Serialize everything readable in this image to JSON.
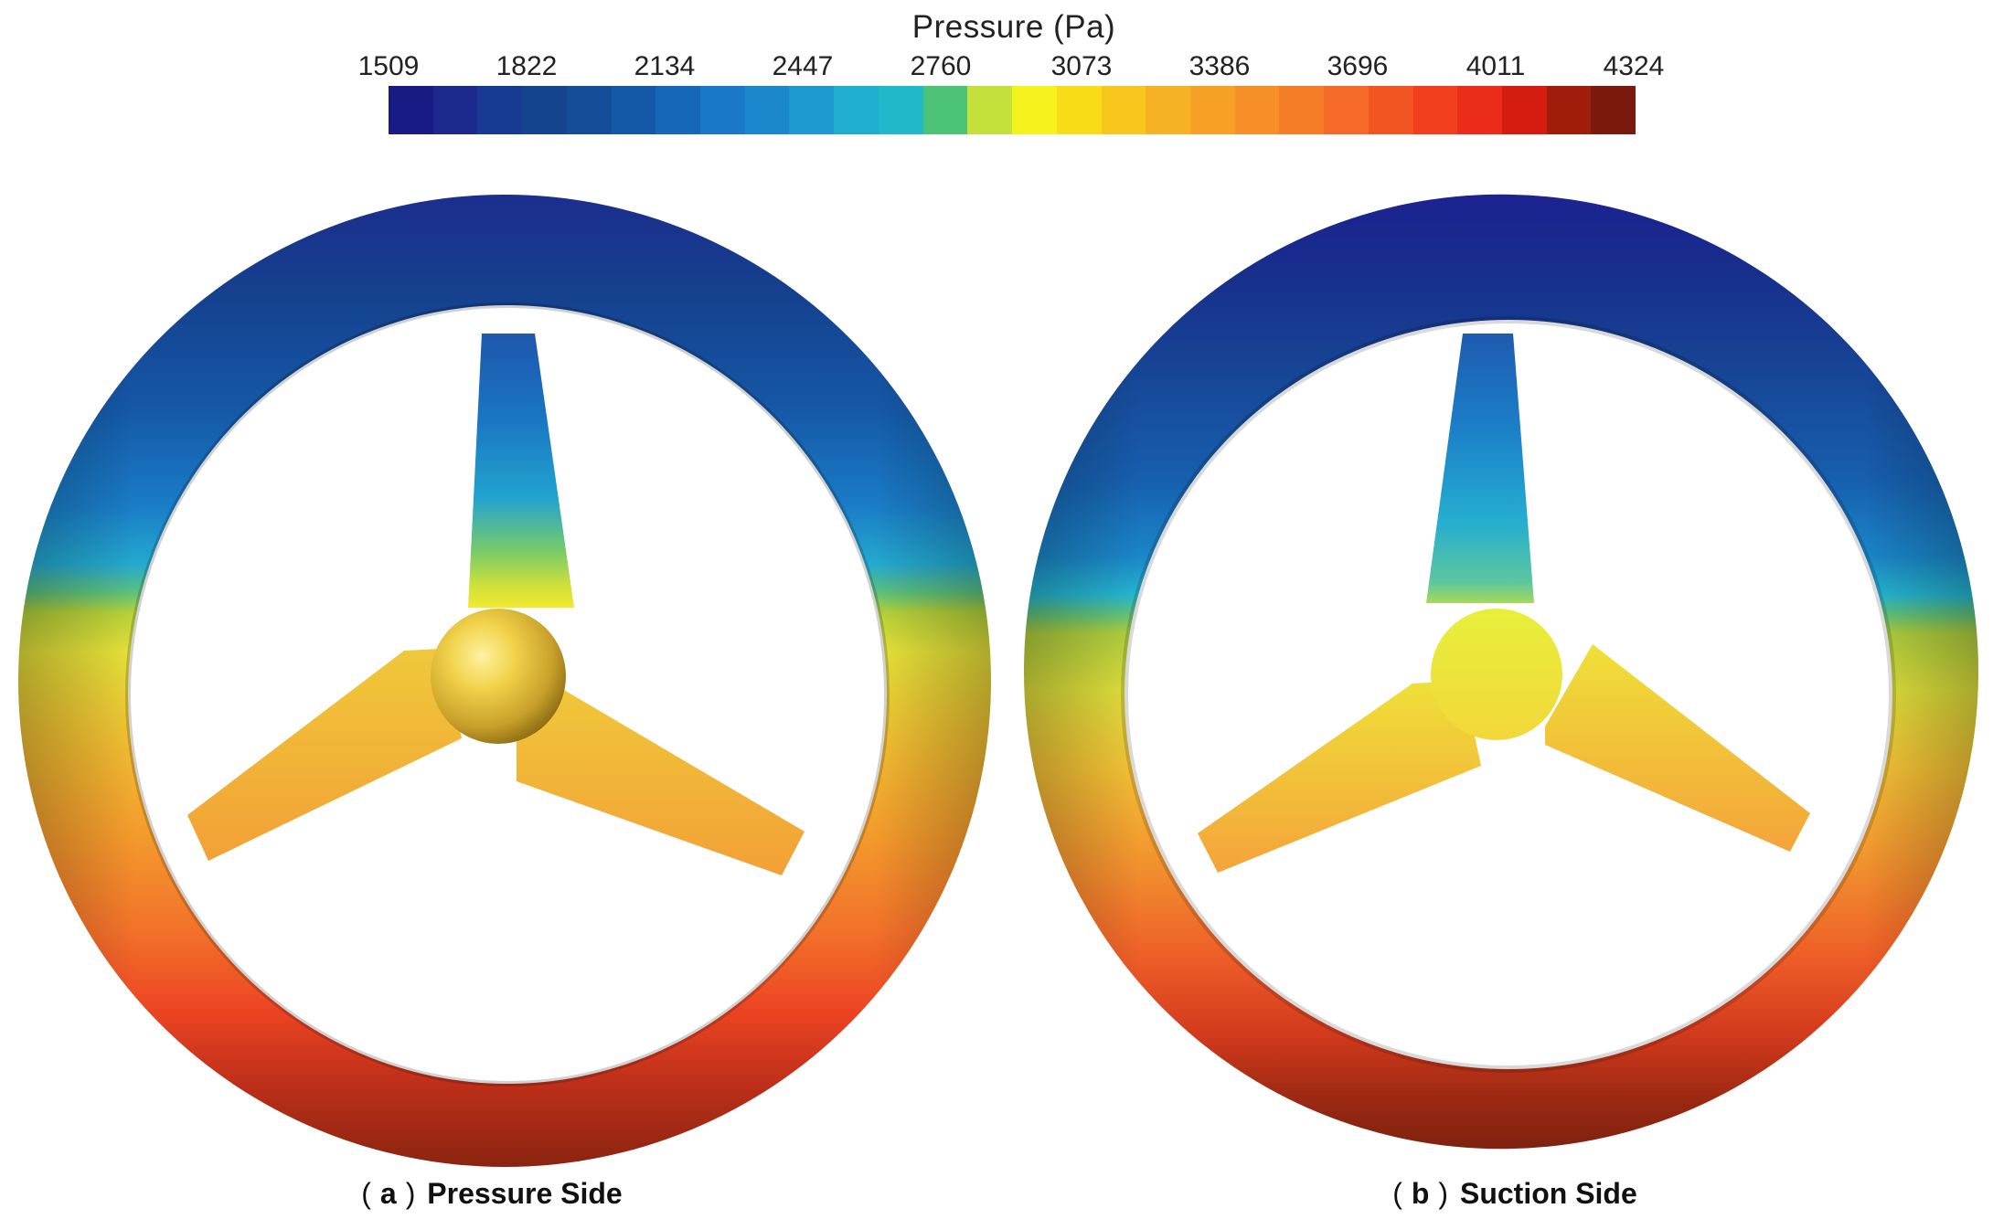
{
  "legend": {
    "title": "Pressure (Pa)",
    "ticks": [
      "1509",
      "1822",
      "2134",
      "2447",
      "2760",
      "3073",
      "3386",
      "3696",
      "4011",
      "4324"
    ],
    "colors": [
      "#1a1a85",
      "#1c2a8e",
      "#173a92",
      "#14448e",
      "#154e98",
      "#1458a8",
      "#1667b8",
      "#1a78c8",
      "#1b88cc",
      "#1e9ad0",
      "#1fadd0",
      "#22b8cc",
      "#4cc277",
      "#c4e03a",
      "#f6f21e",
      "#f8dc18",
      "#f7c71d",
      "#f6b224",
      "#f6a126",
      "#f68f27",
      "#f57d28",
      "#f46a26",
      "#f35522",
      "#f2401e",
      "#ec2c1a",
      "#d41d10",
      "#a01d0c",
      "#7a1a0c"
    ]
  },
  "panels": [
    {
      "letter": "a",
      "label": "Pressure Side"
    },
    {
      "letter": "b",
      "label": "Suction Side"
    }
  ]
}
